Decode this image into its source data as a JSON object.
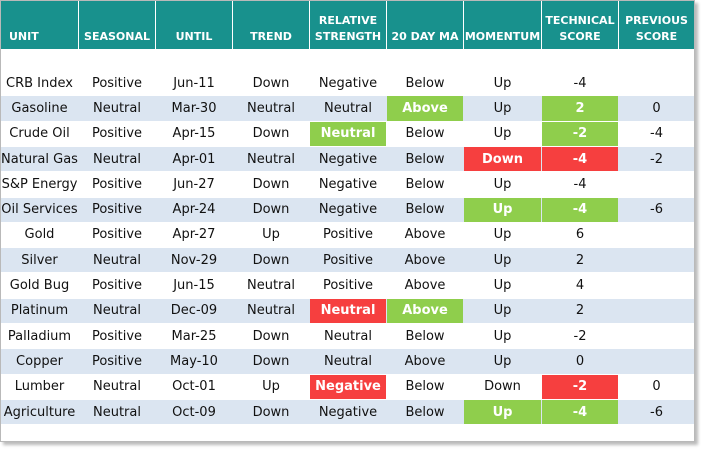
{
  "table": {
    "header": [
      "UNIT",
      "SEASONAL",
      "UNTIL",
      "TREND",
      "RELATIVE STRENGTH",
      "20 DAY MA",
      "MOMENTUM",
      "TECHNICAL SCORE",
      "PREVIOUS SCORE"
    ],
    "rows": [
      [
        "CRB Index",
        "Positive",
        "Jun-11",
        "Down",
        "Negative",
        "Below",
        "Up",
        "-4"
      ],
      [
        "Gasoline",
        "Neutral",
        "Mar-30",
        "Neutral",
        "Neutral",
        "Above",
        "Up",
        "2",
        "0"
      ],
      [
        "Crude Oil",
        "Positive",
        "Apr-15",
        "Down",
        "Neutral",
        "Below",
        "Up",
        "-2",
        "-4"
      ],
      [
        "Natural Gas",
        "Neutral",
        "Apr-01",
        "Neutral",
        "Negative",
        "Below",
        "Down",
        "-4",
        "-2"
      ],
      [
        "S&P Energy",
        "Positive",
        "Jun-27",
        "Down",
        "Negative",
        "Below",
        "Up",
        "-4"
      ],
      [
        "Oil Services",
        "Positive",
        "Apr-24",
        "Down",
        "Negative",
        "Below",
        "Up",
        "-4",
        "-6"
      ],
      [
        "Gold",
        "Positive",
        "Apr-27",
        "Up",
        "Positive",
        "Above",
        "Up",
        "6"
      ],
      [
        "Silver",
        "Neutral",
        "Nov-29",
        "Down",
        "Positive",
        "Above",
        "Up",
        "2"
      ],
      [
        "Gold Bug",
        "Positive",
        "Jun-15",
        "Neutral",
        "Positive",
        "Above",
        "Up",
        "4"
      ],
      [
        "Platinum",
        "Neutral",
        "Dec-09",
        "Neutral",
        "Neutral",
        "Above",
        "Up",
        "2"
      ],
      [
        "Palladium",
        "Positive",
        "Mar-25",
        "Down",
        "Neutral",
        "Below",
        "Up",
        "-2"
      ],
      [
        "Copper",
        "Positive",
        "May-10",
        "Down",
        "Neutral",
        "Above",
        "Up",
        "0"
      ],
      [
        "Lumber",
        "Neutral",
        "Oct-01",
        "Up",
        "Negative",
        "Below",
        "Down",
        "-2",
        "0"
      ],
      [
        "Agriculture",
        "Neutral",
        "Oct-09",
        "Down",
        "Negative",
        "Below",
        "Up",
        "-4",
        "-6"
      ]
    ]
  }
}
